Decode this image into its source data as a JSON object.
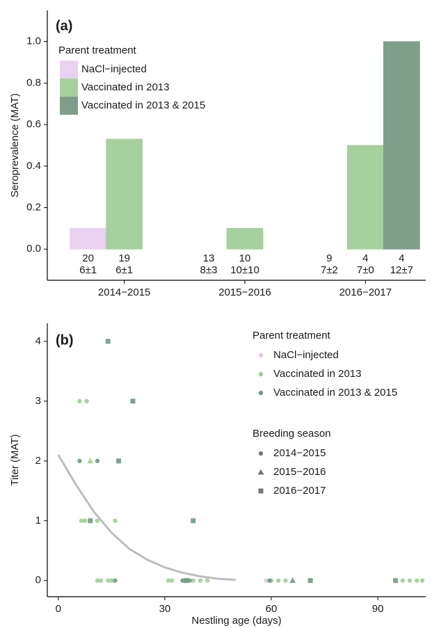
{
  "chart_data": [
    {
      "type": "bar",
      "panel_label": "(a)",
      "ylabel": "Seroprevalence (MAT)",
      "categories": [
        "2014−2015",
        "2015−2016",
        "2016−2017"
      ],
      "ylim": [
        -0.15,
        1.15
      ],
      "yticks": [
        {
          "value": 0,
          "label": "0.0"
        },
        0.2,
        0.4,
        0.6,
        0.8,
        {
          "value": 1,
          "label": "1.0"
        }
      ],
      "legend_title": "Parent treatment",
      "legend": "top-left",
      "series": [
        {
          "name": "NaCl−injected",
          "color": "#e8d2ef",
          "values": [
            0.1,
            0,
            0
          ],
          "n": [
            20,
            13,
            9
          ],
          "age": [
            "6±1",
            "8±3",
            "7±2"
          ]
        },
        {
          "name": "Vaccinated in 2013",
          "color": "#a6d09e",
          "values": [
            0.53,
            0.1,
            0.5
          ],
          "n": [
            19,
            10,
            4
          ],
          "age": [
            "6±1",
            "10±10",
            "7±0"
          ]
        },
        {
          "name": "Vaccinated in 2013 & 2015",
          "color": "#7f9e8a",
          "values": [
            null,
            null,
            1.0
          ],
          "n": [
            null,
            null,
            4
          ],
          "age": [
            null,
            null,
            "12±7"
          ]
        }
      ]
    },
    {
      "type": "scatter",
      "panel_label": "(b)",
      "xlabel": "Nestling age (days)",
      "ylabel": "Titer (MAT)",
      "xlim": [
        -3.1,
        103.5
      ],
      "xticks": [
        0,
        30,
        60,
        90
      ],
      "ylim": [
        -0.27,
        4.3
      ],
      "yticks": [
        0,
        1,
        2,
        3,
        4
      ],
      "color_legend": {
        "title": "Parent treatment",
        "entries": [
          {
            "name": "NaCl−injected",
            "color": "#e3c6ec"
          },
          {
            "name": "Vaccinated in 2013",
            "color": "#9fcf94"
          },
          {
            "name": "Vaccinated in 2013 & 2015",
            "color": "#6f9a80"
          }
        ]
      },
      "shape_legend": {
        "title": "Breeding season",
        "entries": [
          {
            "name": "2014−2015",
            "shape": "circle"
          },
          {
            "name": "2015−2016",
            "shape": "triangle"
          },
          {
            "name": "2016−2017",
            "shape": "square"
          }
        ]
      },
      "series": [
        {
          "color": "#e3c6ec",
          "shape": "circle",
          "x": [
            58.5,
            35
          ],
          "values": [
            0,
            0
          ]
        },
        {
          "color": "#9fcf94",
          "shape": "circle",
          "x": [
            6,
            8,
            6.5,
            7.5,
            11,
            16,
            11,
            12,
            14,
            15,
            31,
            32,
            36,
            38,
            40,
            42,
            60,
            62,
            64,
            97,
            99,
            101,
            102.5
          ],
          "values": [
            3,
            3,
            1,
            1,
            1,
            1,
            0,
            0,
            0,
            0,
            0,
            0,
            0,
            0,
            0,
            0,
            0,
            0,
            0,
            0,
            0,
            0,
            0
          ]
        },
        {
          "color": "#9fcf94",
          "shape": "triangle",
          "x": [
            9
          ],
          "values": [
            2
          ]
        },
        {
          "color": "#6f9a80",
          "shape": "circle",
          "x": [
            6,
            11,
            16,
            35,
            37,
            59.5
          ],
          "values": [
            2,
            2,
            0,
            0,
            0,
            0
          ]
        },
        {
          "color": "#6f9a80",
          "shape": "triangle",
          "x": [
            66
          ],
          "values": [
            0
          ]
        },
        {
          "color": "#6f9a80",
          "shape": "square",
          "x": [
            14,
            21,
            17,
            38,
            9,
            36,
            71,
            95
          ],
          "values": [
            4,
            3,
            2,
            1,
            1,
            0,
            0,
            0
          ]
        }
      ],
      "fit": {
        "color": "#bdbdbd",
        "x": [
          0,
          5,
          10,
          15,
          20,
          25,
          30,
          35,
          40,
          45,
          50
        ],
        "values": [
          2.1,
          1.6,
          1.15,
          0.8,
          0.53,
          0.35,
          0.22,
          0.13,
          0.07,
          0.03,
          0.01
        ]
      }
    }
  ]
}
